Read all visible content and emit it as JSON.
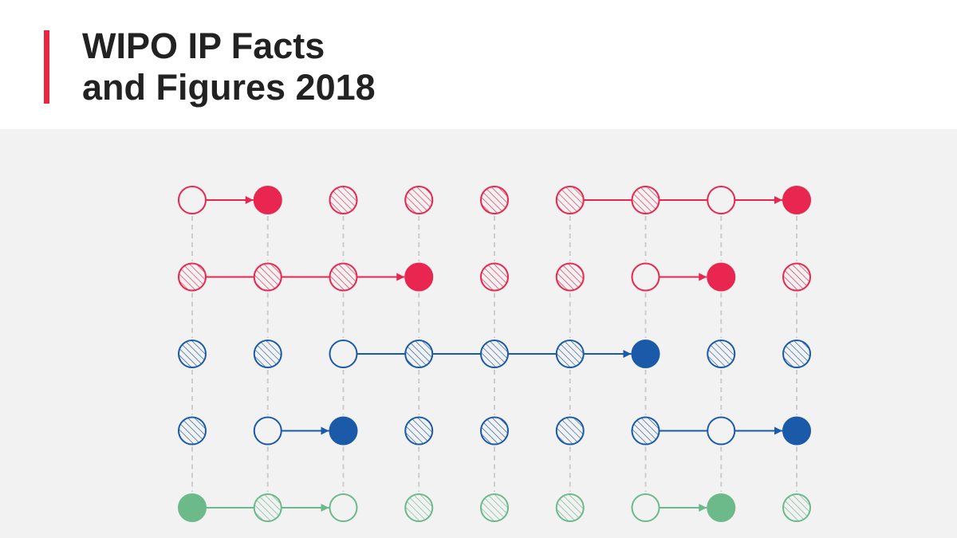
{
  "title": {
    "line1": "WIPO IP Facts",
    "line2": "and Figures 2018"
  },
  "colors": {
    "accent": "#e8263f",
    "red": "#e8264f",
    "blue": "#1b5aa8",
    "green": "#6cb98a",
    "gridline": "#cccccc",
    "panel": "#f2f2f2"
  },
  "diagram": {
    "columns": 9,
    "rows": [
      {
        "color": "red",
        "nodes": [
          "open",
          "solid",
          "hatch",
          "hatch",
          "hatch",
          "hatch",
          "hatch",
          "open",
          "solid"
        ],
        "connections": [
          {
            "from": 0,
            "to": 1,
            "arrow": true
          },
          {
            "from": 5,
            "to": 8,
            "arrow": true
          }
        ]
      },
      {
        "color": "red",
        "nodes": [
          "hatch",
          "hatch",
          "hatch",
          "solid",
          "hatch",
          "hatch",
          "open",
          "solid",
          "hatch"
        ],
        "connections": [
          {
            "from": 0,
            "to": 3,
            "arrow": true
          },
          {
            "from": 6,
            "to": 7,
            "arrow": true
          }
        ]
      },
      {
        "color": "blue",
        "nodes": [
          "hatch",
          "hatch",
          "open",
          "hatch",
          "hatch",
          "hatch",
          "solid",
          "hatch",
          "hatch"
        ],
        "connections": [
          {
            "from": 2,
            "to": 6,
            "arrow": true
          }
        ]
      },
      {
        "color": "blue",
        "nodes": [
          "hatch",
          "open",
          "solid",
          "hatch",
          "hatch",
          "hatch",
          "hatch",
          "open",
          "solid"
        ],
        "connections": [
          {
            "from": 1,
            "to": 2,
            "arrow": true
          },
          {
            "from": 6,
            "to": 8,
            "arrow": true
          }
        ]
      },
      {
        "color": "green",
        "nodes": [
          "solid",
          "hatch",
          "open",
          "hatch",
          "hatch",
          "hatch",
          "open",
          "solid",
          "hatch"
        ],
        "connections": [
          {
            "from": 0,
            "to": 2,
            "arrow": true
          },
          {
            "from": 6,
            "to": 7,
            "arrow": true
          }
        ]
      }
    ]
  }
}
